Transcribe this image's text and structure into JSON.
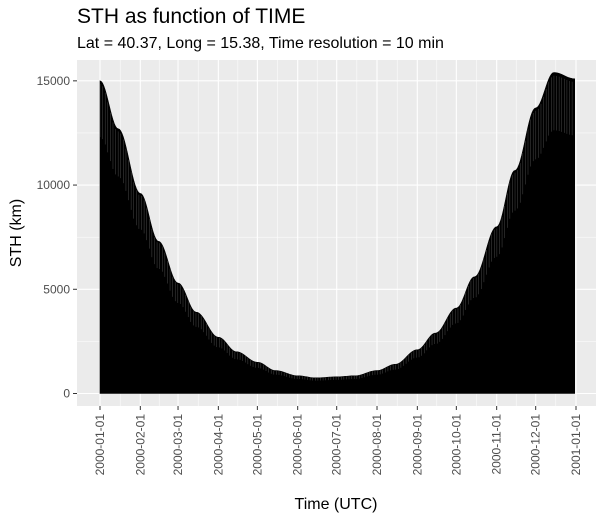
{
  "header": {
    "title": "STH as function of TIME",
    "subtitle": "Lat = 40.37, Long = 15.38, Time resolution = 10 min"
  },
  "chart_data": {
    "type": "area",
    "title": "STH as function of TIME",
    "subtitle": "Lat = 40.37, Long = 15.38, Time resolution = 10 min",
    "xlabel": "Time (UTC)",
    "ylabel": "STH (km)",
    "x_range": [
      "2000-01-01",
      "2001-01-01"
    ],
    "ylim": [
      -600,
      16000
    ],
    "grid": true,
    "x_ticks": [
      "2000-01-01",
      "2000-02-01",
      "2000-03-01",
      "2000-04-01",
      "2000-05-01",
      "2000-06-01",
      "2000-07-01",
      "2000-08-01",
      "2000-09-01",
      "2000-10-01",
      "2000-11-01",
      "2000-12-01",
      "2001-01-01"
    ],
    "y_ticks": [
      0,
      5000,
      10000,
      15000
    ],
    "y_tick_labels": [
      "0",
      "5000",
      "10000",
      "15000"
    ],
    "series": [
      {
        "x": [
          "2000-01-01",
          "2000-01-15",
          "2000-02-01",
          "2000-02-15",
          "2000-03-01",
          "2000-03-15",
          "2000-04-01",
          "2000-04-15",
          "2000-05-01",
          "2000-05-15",
          "2000-06-01",
          "2000-06-15",
          "2000-07-01",
          "2000-07-15",
          "2000-08-01",
          "2000-08-15",
          "2000-09-01",
          "2000-09-15",
          "2000-10-01",
          "2000-10-15",
          "2000-11-01",
          "2000-11-15",
          "2000-12-01",
          "2000-12-15",
          "2000-12-31"
        ],
        "y": [
          15000,
          12700,
          9600,
          7300,
          5300,
          3900,
          2700,
          2000,
          1500,
          1100,
          850,
          750,
          800,
          850,
          1100,
          1400,
          2100,
          2900,
          4100,
          5600,
          8000,
          10700,
          13700,
          15400,
          15100
        ]
      }
    ]
  }
}
